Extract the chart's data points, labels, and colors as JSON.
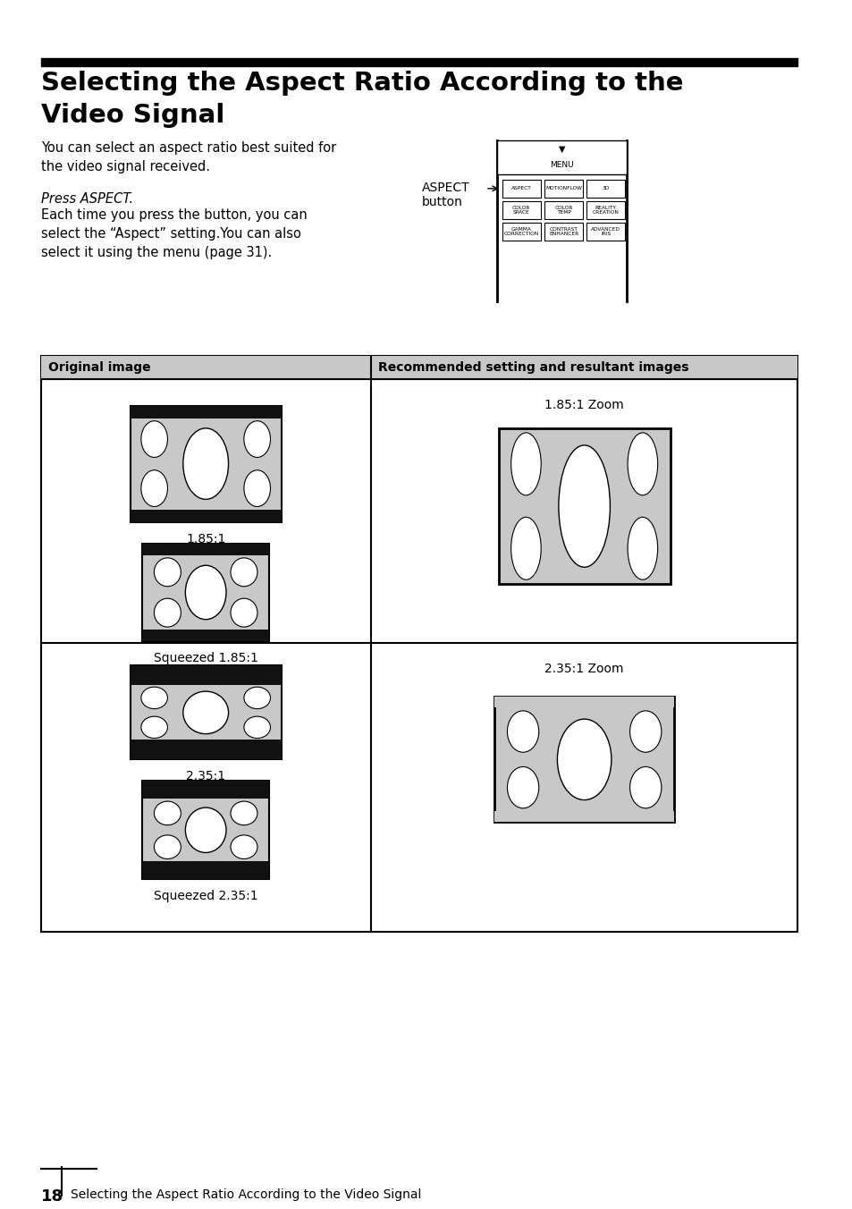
{
  "title_line1": "Selecting the Aspect Ratio According to the",
  "title_line2": "Video Signal",
  "body_text1": "You can select an aspect ratio best suited for\nthe video signal received.",
  "press_heading": "Press ASPECT.",
  "body_text2": "Each time you press the button, you can\nselect the “Aspect” setting.You can also\nselect it using the menu (page 31).",
  "aspect_label": "ASPECT\nbutton",
  "col1_header": "Original image",
  "col2_header": "Recommended setting and resultant images",
  "row1_label1": "1.85:1",
  "row1_label2": "Squeezed 1.85:1",
  "row2_zoom": "1.85:1 Zoom",
  "row3_label1": "2.35:1",
  "row3_label2": "Squeezed 2.35:1",
  "row4_zoom": "2.35:1 Zoom",
  "page_num": "18",
  "footer_text": "Selecting the Aspect Ratio According to the Video Signal",
  "bg_color": "#ffffff",
  "header_bg": "#c8c8c8",
  "table_border": "#000000",
  "black_bar": "#111111",
  "gray_fill": "#c8c8c8",
  "white": "#ffffff"
}
